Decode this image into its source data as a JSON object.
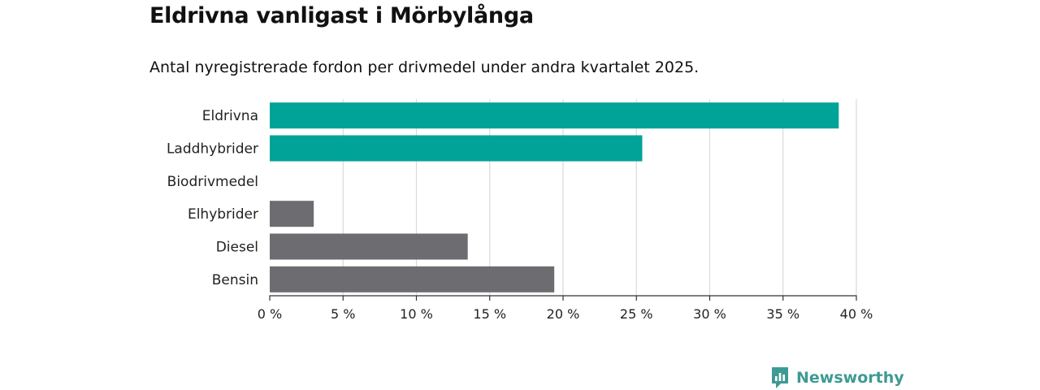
{
  "header": {
    "title": "Eldrivna vanligast i Mörbylånga",
    "subtitle": "Antal nyregistrerade fordon per drivmedel under andra kvartalet 2025."
  },
  "brand": {
    "name": "Newsworthy",
    "icon": "newsworthy-logo-icon",
    "color": "#3e9a93"
  },
  "chart_data": {
    "type": "bar",
    "orientation": "horizontal",
    "categories": [
      "Eldrivna",
      "Laddhybrider",
      "Biodrivmedel",
      "Elhybrider",
      "Diesel",
      "Bensin"
    ],
    "values": [
      38.8,
      25.4,
      0,
      3.0,
      13.5,
      19.4
    ],
    "colors": [
      "#00a398",
      "#00a398",
      "#6d6c71",
      "#6d6c71",
      "#6d6c71",
      "#6d6c71"
    ],
    "xlim": [
      0,
      40
    ],
    "xticks": [
      0,
      5,
      10,
      15,
      20,
      25,
      30,
      35,
      40
    ],
    "xtick_labels": [
      "0 %",
      "5 %",
      "10 %",
      "15 %",
      "20 %",
      "25 %",
      "30 %",
      "35 %",
      "40 %"
    ],
    "grid": "vertical",
    "legend": "none"
  }
}
